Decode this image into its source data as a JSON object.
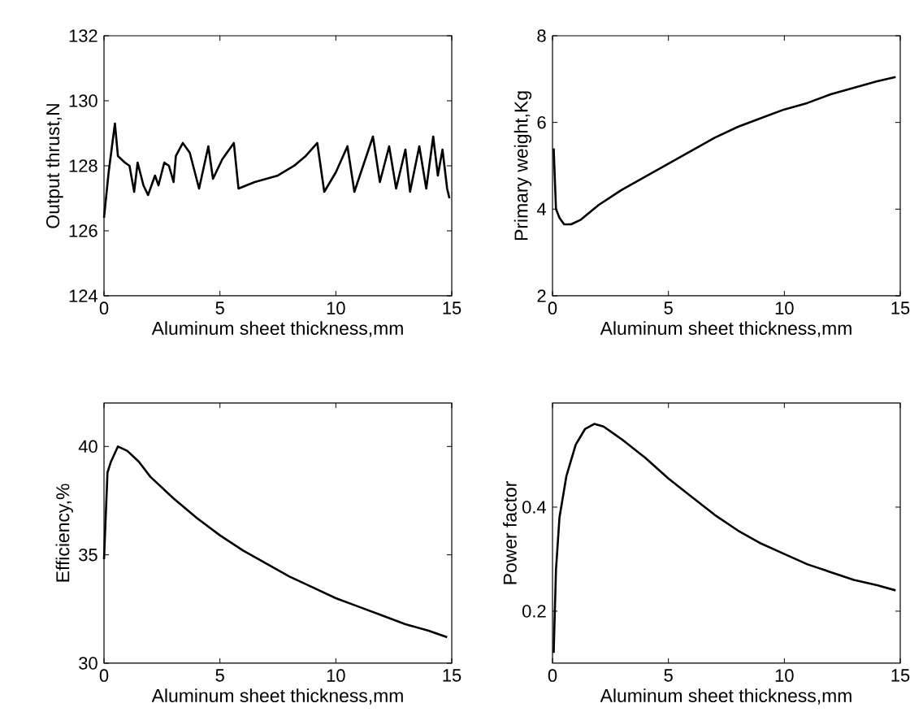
{
  "chart_data": [
    {
      "type": "line",
      "xlabel": "Aluminum sheet thickness,mm",
      "ylabel": "Output thrust,N",
      "xlim": [
        0,
        15
      ],
      "ylim": [
        124,
        132
      ],
      "xticks": [
        0,
        5,
        10,
        15
      ],
      "yticks": [
        124,
        126,
        128,
        130,
        132
      ],
      "x": [
        0,
        0.2,
        0.47,
        0.6,
        0.9,
        1.1,
        1.3,
        1.45,
        1.7,
        1.9,
        2.2,
        2.35,
        2.6,
        2.8,
        3.0,
        3.1,
        3.4,
        3.7,
        4.1,
        4.5,
        4.7,
        5.1,
        5.6,
        5.8,
        6.5,
        7.5,
        8.2,
        8.7,
        9.2,
        9.5,
        10.0,
        10.5,
        10.8,
        11.6,
        11.9,
        12.3,
        12.6,
        13.0,
        13.2,
        13.6,
        13.9,
        14.2,
        14.4,
        14.6,
        14.8,
        14.9
      ],
      "series": [
        {
          "color": "#000000",
          "values": [
            126.4,
            127.8,
            129.3,
            128.3,
            128.1,
            128.0,
            127.2,
            128.1,
            127.4,
            127.1,
            127.7,
            127.4,
            128.1,
            128.0,
            127.5,
            128.3,
            128.7,
            128.4,
            127.3,
            128.6,
            127.6,
            128.2,
            128.7,
            127.3,
            127.5,
            127.7,
            128.0,
            128.3,
            128.7,
            127.2,
            127.8,
            128.6,
            127.2,
            128.9,
            127.5,
            128.6,
            127.3,
            128.5,
            127.2,
            128.6,
            127.3,
            128.9,
            127.7,
            128.5,
            127.3,
            127.0
          ]
        }
      ]
    },
    {
      "type": "line",
      "xlabel": "Aluminum sheet thickness,mm",
      "ylabel": "Primary weight,Kg",
      "xlim": [
        0,
        15
      ],
      "ylim": [
        2,
        8
      ],
      "xticks": [
        0,
        5,
        10,
        15
      ],
      "yticks": [
        2,
        4,
        6,
        8
      ],
      "x": [
        0.05,
        0.15,
        0.3,
        0.5,
        0.8,
        1.2,
        2,
        3,
        4,
        5,
        6,
        7,
        8,
        9,
        10,
        11,
        12,
        13,
        14,
        14.8
      ],
      "series": [
        {
          "color": "#000000",
          "values": [
            5.4,
            4.0,
            3.8,
            3.65,
            3.65,
            3.75,
            4.1,
            4.45,
            4.75,
            5.05,
            5.35,
            5.65,
            5.9,
            6.1,
            6.3,
            6.45,
            6.65,
            6.8,
            6.95,
            7.05
          ]
        }
      ]
    },
    {
      "type": "line",
      "xlabel": "Aluminum sheet thickness,mm",
      "ylabel": "Efficiency,%",
      "xlim": [
        0,
        15
      ],
      "ylim": [
        30,
        42
      ],
      "xticks": [
        0,
        5,
        10,
        15
      ],
      "yticks": [
        30,
        35,
        40
      ],
      "x": [
        0,
        0.15,
        0.3,
        0.6,
        1,
        1.5,
        2,
        3,
        4,
        5,
        6,
        7,
        8,
        9,
        10,
        11,
        12,
        13,
        14,
        14.8
      ],
      "series": [
        {
          "color": "#000000",
          "values": [
            34.8,
            38.8,
            39.3,
            40.0,
            39.8,
            39.3,
            38.6,
            37.6,
            36.7,
            35.9,
            35.2,
            34.6,
            34.0,
            33.5,
            33.0,
            32.6,
            32.2,
            31.8,
            31.5,
            31.2
          ]
        }
      ]
    },
    {
      "type": "line",
      "xlabel": "Aluminum sheet thickness,mm",
      "ylabel": "Power factor",
      "xlim": [
        0,
        15
      ],
      "ylim": [
        0.1,
        0.6
      ],
      "xticks": [
        0,
        5,
        10,
        15
      ],
      "yticks": [
        0.2,
        0.4
      ],
      "x": [
        0.05,
        0.15,
        0.3,
        0.6,
        1,
        1.4,
        1.8,
        2.2,
        3,
        4,
        5,
        6,
        7,
        8,
        9,
        10,
        11,
        12,
        13,
        14,
        14.8
      ],
      "series": [
        {
          "color": "#000000",
          "values": [
            0.12,
            0.28,
            0.38,
            0.46,
            0.52,
            0.55,
            0.56,
            0.555,
            0.53,
            0.495,
            0.455,
            0.42,
            0.385,
            0.355,
            0.33,
            0.31,
            0.29,
            0.275,
            0.26,
            0.25,
            0.24
          ]
        }
      ]
    }
  ]
}
